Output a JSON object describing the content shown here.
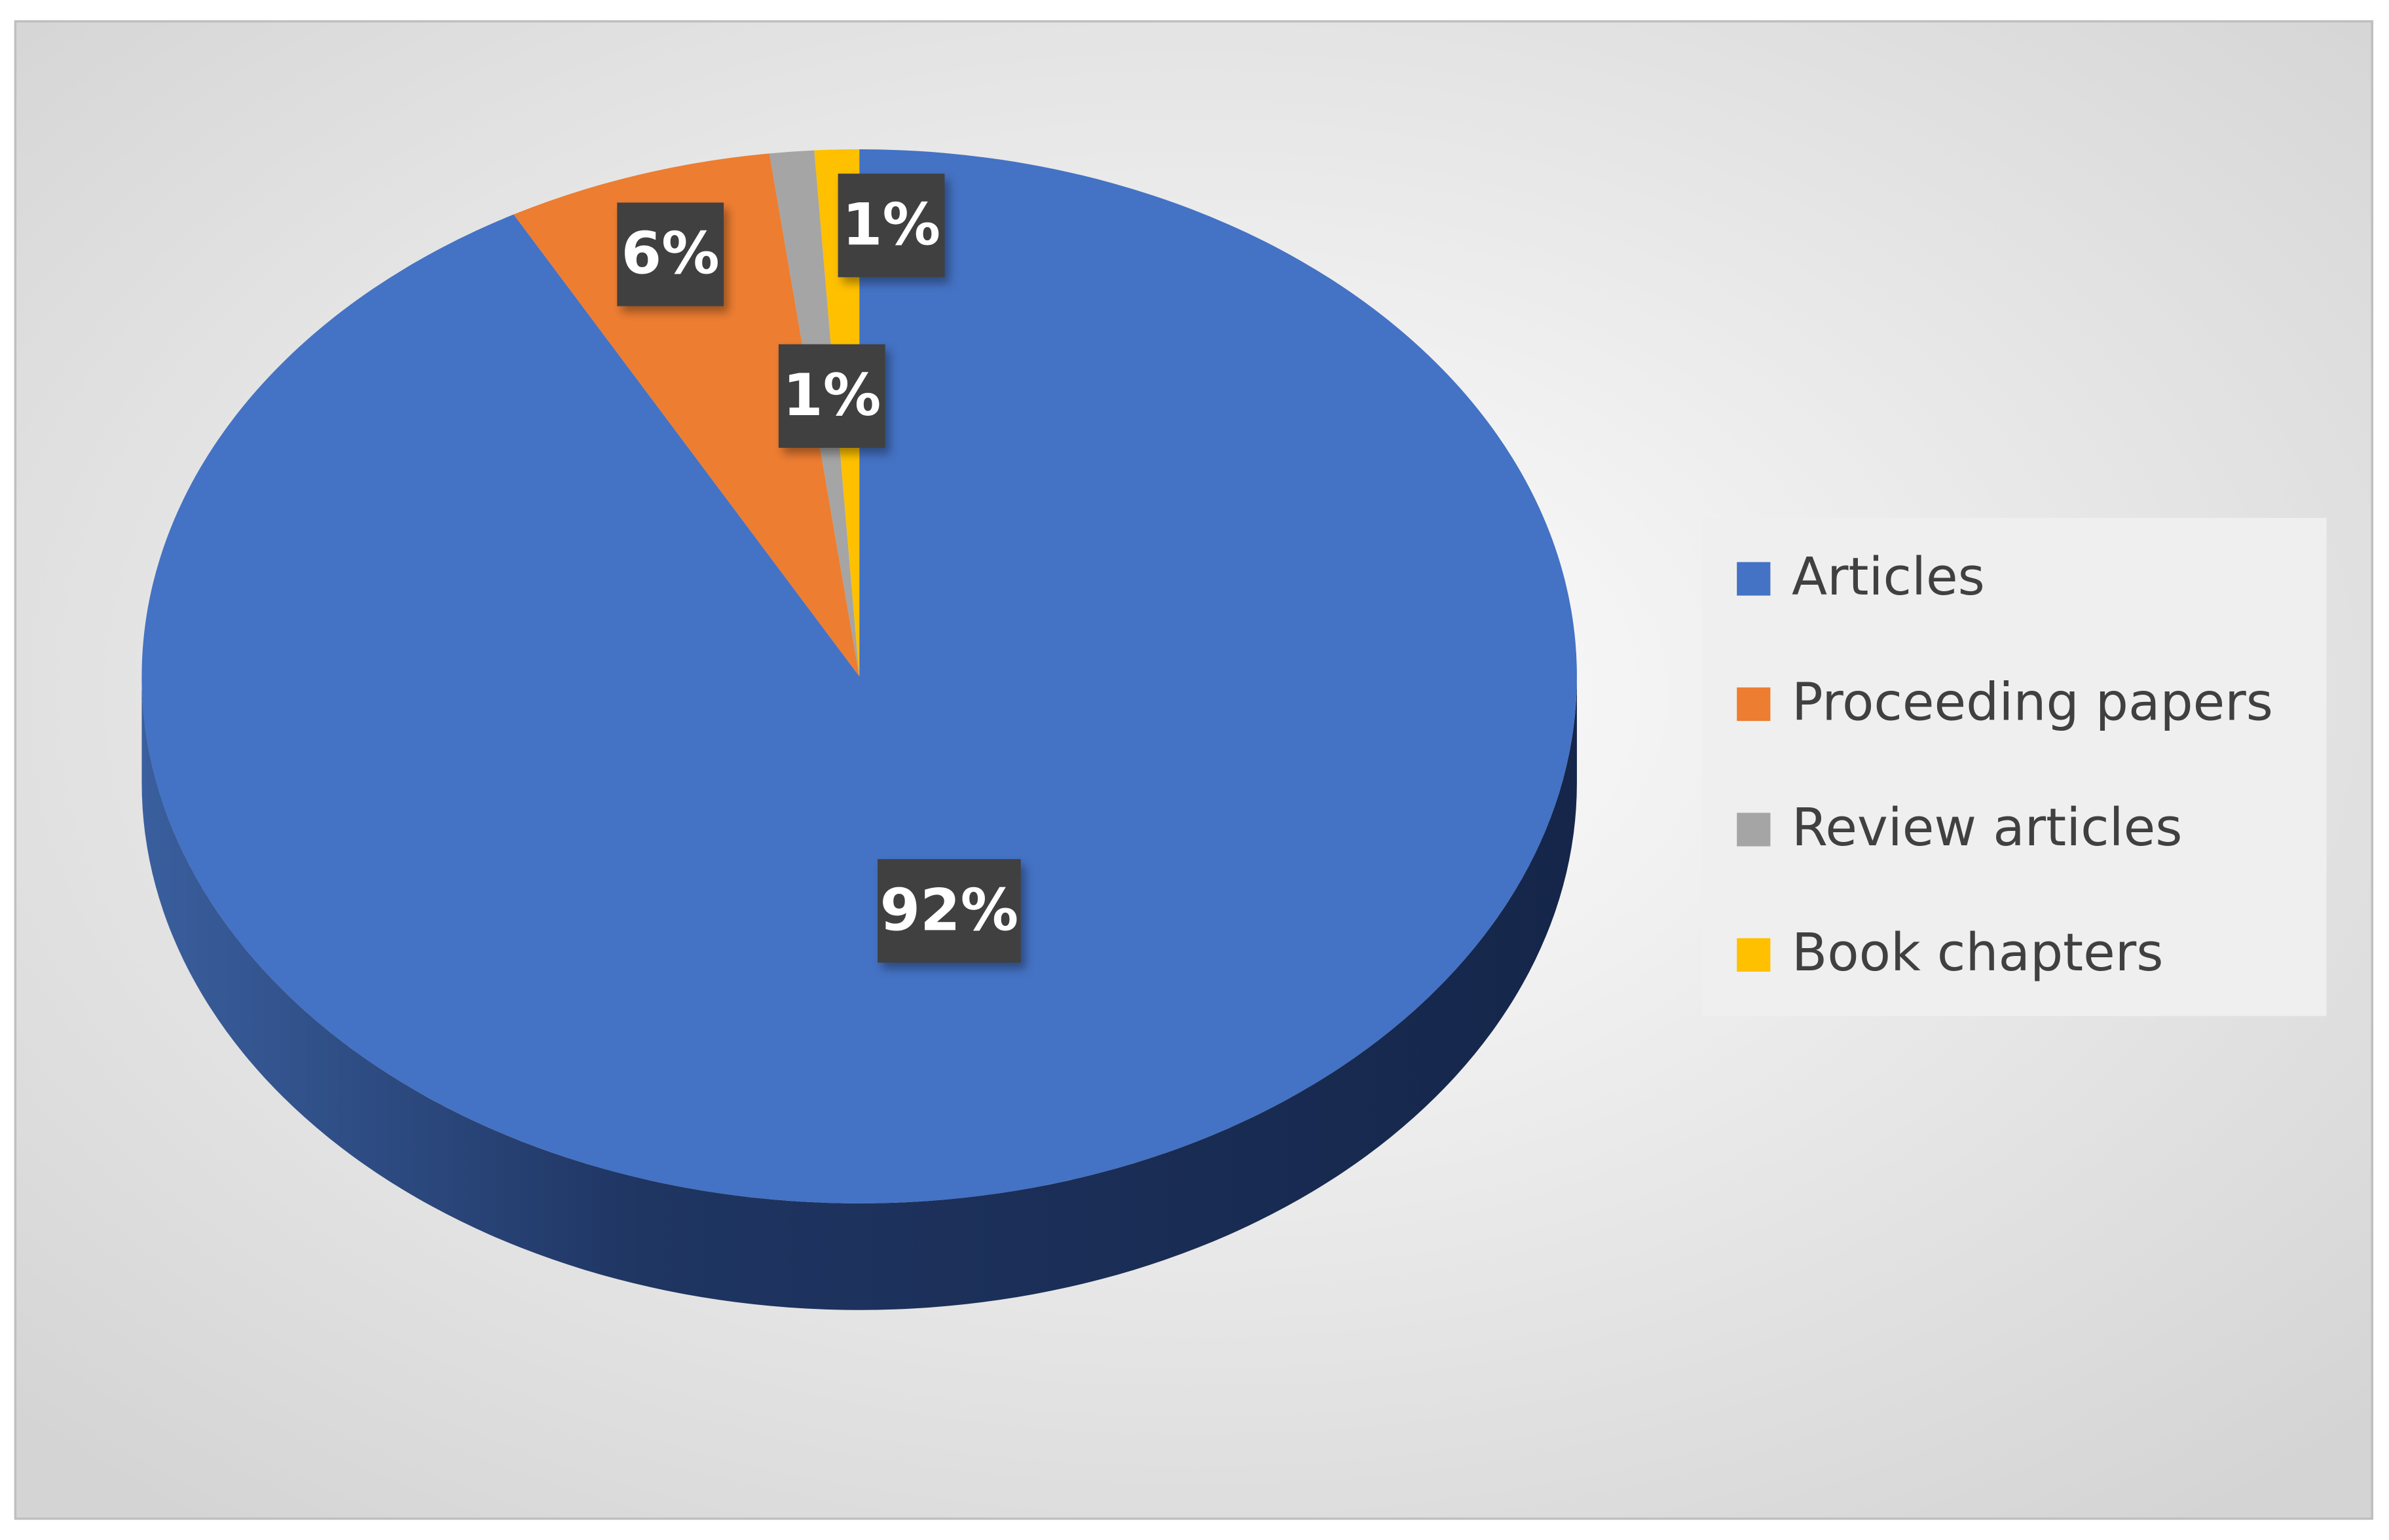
{
  "chart_data": {
    "type": "pie",
    "categories": [
      "Articles",
      "Proceeding papers",
      "Review articles",
      "Book chapters"
    ],
    "values": [
      92,
      6,
      1,
      1
    ],
    "value_labels": [
      "92%",
      "6%",
      "1%",
      "1%"
    ],
    "colors": [
      "#4472c4",
      "#ed7d31",
      "#a5a5a5",
      "#ffc000"
    ],
    "legend": "right"
  }
}
